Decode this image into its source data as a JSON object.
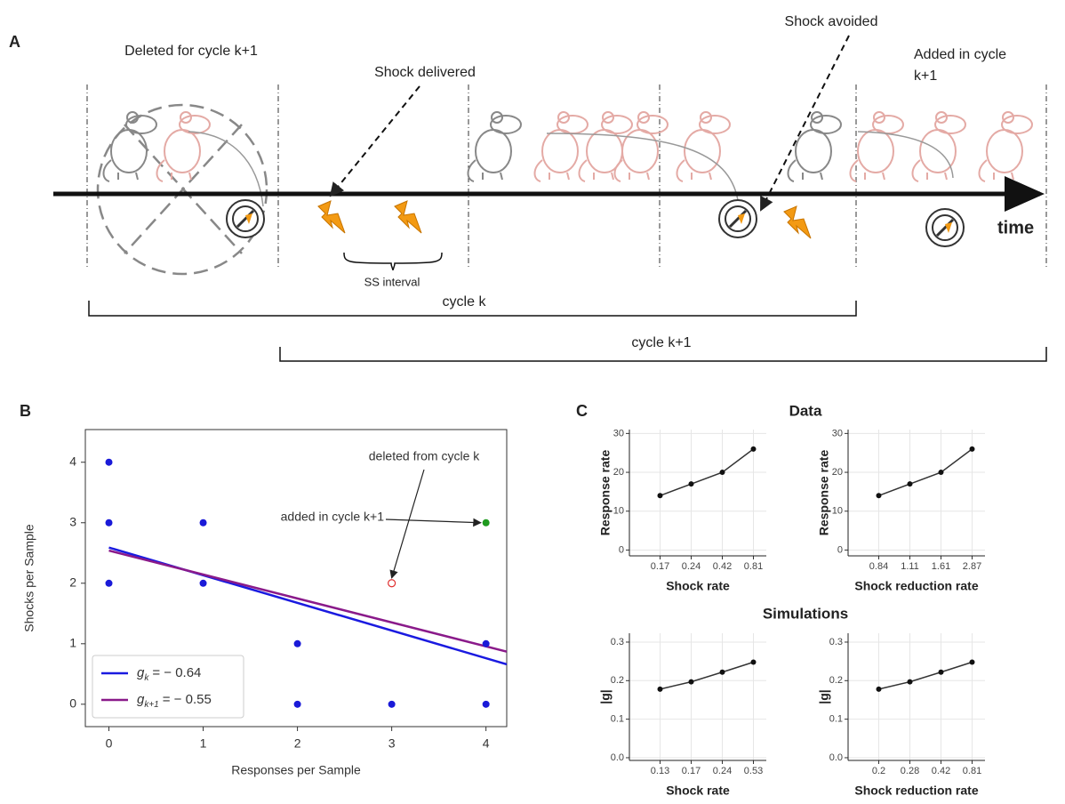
{
  "diagram": {
    "label": "A",
    "deleted_note": "Deleted for cycle k+1",
    "shock_delivered": "Shock delivered",
    "shock_avoided": "Shock avoided",
    "added_note": [
      "Added in cycle",
      "k+1"
    ],
    "ss_interval": "SS interval",
    "cycle_k": "cycle k",
    "cycle_k1": "cycle k+1",
    "time": "time"
  },
  "panel_b": {
    "label": "B"
  },
  "panel_c": {
    "label": "C",
    "headings": [
      "Data",
      "Simulations"
    ]
  },
  "chart_data": [
    {
      "type": "scatter",
      "x_label": "Responses per Sample",
      "y_label": "Shocks per Sample",
      "xlim": [
        -0.25,
        4.22
      ],
      "ylim": [
        -0.37,
        4.54
      ],
      "xticks": [
        0,
        1,
        2,
        3,
        4
      ],
      "yticks": [
        0,
        1,
        2,
        3,
        4
      ],
      "series": [
        {
          "color": "#1a1ad8",
          "x": [
            0,
            0,
            0,
            1,
            1,
            2,
            2,
            3,
            4,
            4
          ],
          "values": [
            4,
            3,
            2,
            3,
            2,
            1,
            0,
            0,
            0,
            1
          ]
        },
        {
          "color": "#1f9a1f",
          "x": [
            4
          ],
          "values": [
            3
          ]
        },
        {
          "color": "#e03030",
          "hollow": true,
          "x": [
            3
          ],
          "values": [
            2
          ]
        }
      ],
      "fit_lines": [
        {
          "name": "g",
          "subscript": "k",
          "estimate_label": "= − 0.64",
          "color": "#1a1ae0",
          "x": [
            0,
            4.22
          ],
          "values": [
            2.59,
            0.66
          ]
        },
        {
          "name": "g",
          "subscript": "k+1",
          "estimate_label": "= − 0.55",
          "color": "#8a1a8a",
          "x": [
            0,
            4.22
          ],
          "values": [
            2.54,
            0.87
          ]
        }
      ],
      "annotations": [
        {
          "text": "deleted from cycle k",
          "xy": [
            3,
            2
          ]
        },
        {
          "text": "added in cycle k+1",
          "xy": [
            4,
            3
          ]
        }
      ],
      "legend": "lower left"
    },
    {
      "type": "line",
      "categories": [
        "0.17",
        "0.24",
        "0.42",
        "0.81"
      ],
      "values": [
        14,
        17,
        20,
        26
      ],
      "color": "#333333",
      "x_label": "Shock rate",
      "y_label": "Response rate",
      "ylim": [
        -1.5,
        31
      ],
      "yticks": [
        0,
        10,
        20,
        30
      ],
      "grid": true
    },
    {
      "type": "line",
      "categories": [
        "0.84",
        "1.11",
        "1.61",
        "2.87"
      ],
      "values": [
        14,
        17,
        20,
        26
      ],
      "color": "#333333",
      "x_label": "Shock reduction rate",
      "y_label": "Response rate",
      "ylim": [
        -1.5,
        31
      ],
      "yticks": [
        0,
        10,
        20,
        30
      ],
      "grid": true
    },
    {
      "type": "line",
      "categories": [
        "0.13",
        "0.17",
        "0.24",
        "0.53"
      ],
      "values": [
        0.178,
        0.197,
        0.222,
        0.248
      ],
      "color": "#333333",
      "x_label": "Shock rate",
      "y_label": "|g|",
      "ylim": [
        -0.007,
        0.323
      ],
      "yticks": [
        {
          "value": 0,
          "label": "0.0"
        },
        0.1,
        0.2,
        0.3
      ],
      "grid": true
    },
    {
      "type": "line",
      "categories": [
        "0.2",
        "0.28",
        "0.42",
        "0.81"
      ],
      "values": [
        0.178,
        0.197,
        0.222,
        0.248
      ],
      "color": "#333333",
      "x_label": "Shock reduction rate",
      "y_label": "|g|",
      "ylim": [
        -0.007,
        0.323
      ],
      "yticks": [
        {
          "value": 0,
          "label": "0.0"
        },
        0.1,
        0.2,
        0.3
      ],
      "grid": true
    }
  ]
}
